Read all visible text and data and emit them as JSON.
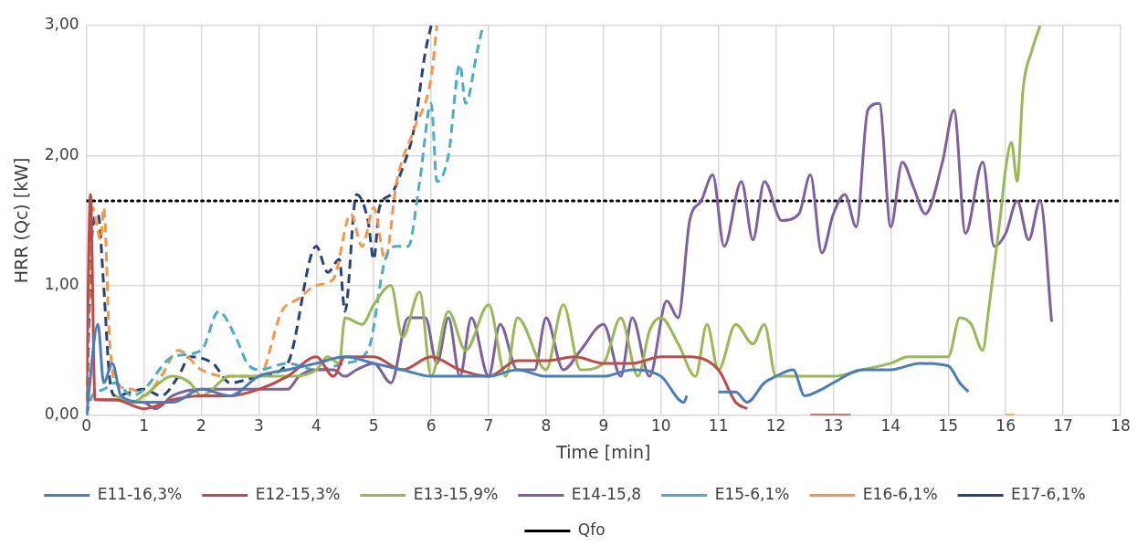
{
  "chart_data": {
    "type": "line",
    "xlabel": "Time [min]",
    "ylabel": "HRR (Qc) [kW]",
    "xlim": [
      0,
      18
    ],
    "xticks": [
      0,
      1,
      2,
      3,
      4,
      5,
      6,
      7,
      8,
      9,
      10,
      11,
      12,
      13,
      14,
      15,
      16,
      17,
      18
    ],
    "ylim": [
      0,
      3
    ],
    "yticks": [
      {
        "value": 0,
        "label": "0,00"
      },
      {
        "value": 1,
        "label": "1,00"
      },
      {
        "value": 2,
        "label": "2,00"
      },
      {
        "value": 3,
        "label": "3,00"
      }
    ],
    "grid": true,
    "legend": "bottom",
    "marker": "none",
    "series": [
      {
        "name": "E11-16,3%",
        "color": "#4a7ebb",
        "line_style": "solid",
        "x": [
          0,
          0.2,
          0.3,
          0.45,
          0.6,
          1,
          1.5,
          2,
          2.5,
          3,
          3.5,
          4,
          4.5,
          5,
          5.5,
          6,
          7,
          7.5,
          8,
          9,
          9.5,
          10,
          10.4,
          10.45,
          10.7,
          11,
          11.3,
          11.5,
          11.8,
          12,
          12.3,
          12.5,
          12.8,
          13,
          13.5,
          14,
          14.5,
          15,
          15.2,
          15.35
        ],
        "values": [
          0,
          0.7,
          0.25,
          0.4,
          0.15,
          0.1,
          0.1,
          0.2,
          0.15,
          0.3,
          0.35,
          0.4,
          0.45,
          0.4,
          0.35,
          0.3,
          0.3,
          0.35,
          0.3,
          0.3,
          0.35,
          0.3,
          0.1,
          0.15,
          null,
          0.18,
          0.18,
          0.1,
          0.25,
          0.3,
          0.35,
          0.15,
          0.2,
          0.25,
          0.35,
          0.35,
          0.4,
          0.38,
          0.25,
          0.18
        ]
      },
      {
        "name": "E12-15,3%",
        "color": "#be4b48",
        "line_style": "solid",
        "x": [
          0,
          0.07,
          0.15,
          0.5,
          1,
          1.5,
          2,
          2.5,
          3,
          3.5,
          4,
          4.3,
          4.5,
          5,
          5.5,
          6,
          6.5,
          7,
          7.5,
          8,
          8.5,
          9,
          9.5,
          10,
          10.5,
          11,
          11.3,
          11.5,
          12,
          12.6,
          13.3
        ],
        "values": [
          0.1,
          1.7,
          0.12,
          0.12,
          0.05,
          0.12,
          0.15,
          0.15,
          0.2,
          0.3,
          0.45,
          0.3,
          0.45,
          0.45,
          0.35,
          0.45,
          0.35,
          0.3,
          0.42,
          0.42,
          0.45,
          0.4,
          0.4,
          0.45,
          0.45,
          0.35,
          0.1,
          0.05,
          null,
          0,
          0
        ]
      },
      {
        "name": "E13-15,9%",
        "color": "#98b954",
        "line_style": "solid",
        "x": [
          0.5,
          0.8,
          1,
          1.5,
          1.8,
          2,
          2.5,
          3,
          3.5,
          4,
          4.2,
          4.4,
          4.5,
          4.8,
          5,
          5.3,
          5.5,
          5.8,
          6,
          6.3,
          6.6,
          7,
          7.3,
          7.5,
          8,
          8.3,
          8.6,
          9,
          9.3,
          9.6,
          9.8,
          10,
          10.3,
          10.6,
          10.8,
          11,
          11.3,
          11.6,
          11.8,
          12,
          12.5,
          12.8,
          13,
          13.5,
          14,
          14.3,
          14.5,
          15,
          15.2,
          15.4,
          15.6,
          15.7,
          15.9,
          16,
          16.1,
          16.2,
          16.3,
          16.45,
          16.6
        ],
        "values": [
          0.15,
          0.1,
          0.15,
          0.3,
          0.25,
          0.15,
          0.3,
          0.3,
          0.3,
          0.35,
          0.45,
          0.4,
          0.75,
          0.7,
          0.85,
          1,
          0.6,
          0.95,
          0.3,
          0.8,
          0.5,
          0.85,
          0.3,
          0.75,
          0.35,
          0.85,
          0.35,
          0.4,
          0.75,
          0.3,
          0.65,
          0.75,
          0.55,
          0.3,
          0.7,
          0.35,
          0.7,
          0.55,
          0.7,
          0.3,
          0.3,
          0.3,
          0.3,
          0.35,
          0.4,
          0.45,
          0.45,
          0.45,
          0.75,
          0.7,
          0.5,
          0.8,
          1.5,
          1.9,
          2.1,
          1.8,
          2.5,
          2.8,
          3
        ]
      },
      {
        "name": "E14-15,8",
        "color": "#7d60a0",
        "line_style": "solid",
        "x": [
          0.2,
          1,
          1.2,
          1.5,
          2,
          2.5,
          3,
          3.5,
          3.7,
          4,
          4.3,
          4.5,
          4.7,
          5,
          5.3,
          5.6,
          5.9,
          6.1,
          6.3,
          6.5,
          6.7,
          7,
          7.2,
          7.5,
          7.8,
          8,
          8.3,
          8.6,
          9,
          9.3,
          9.5,
          9.8,
          10.1,
          10.3,
          10.5,
          10.7,
          10.9,
          11.1,
          11.4,
          11.6,
          11.8,
          12.1,
          12.4,
          12.6,
          12.8,
          13,
          13.2,
          13.4,
          13.6,
          13.8,
          14,
          14.2,
          14.4,
          14.6,
          14.9,
          15.1,
          15.3,
          15.6,
          15.8,
          16,
          16.2,
          16.4,
          16.6,
          16.8
        ],
        "values": [
          0.12,
          0.1,
          0.05,
          0.15,
          0.2,
          0.2,
          0.2,
          0.2,
          0.3,
          0.35,
          0.35,
          0.3,
          0.35,
          0.4,
          0.25,
          0.75,
          0.75,
          0.4,
          0.75,
          0.3,
          0.75,
          0.3,
          0.7,
          0.35,
          0.35,
          0.75,
          0.35,
          0.5,
          0.7,
          0.3,
          0.75,
          0.3,
          0.88,
          0.75,
          1.5,
          1.65,
          1.85,
          1.3,
          1.8,
          1.35,
          1.8,
          1.5,
          1.55,
          1.85,
          1.25,
          1.55,
          1.7,
          1.45,
          2.35,
          2.4,
          1.45,
          1.95,
          1.75,
          1.55,
          1.95,
          2.35,
          1.4,
          1.95,
          1.3,
          1.4,
          1.65,
          1.35,
          1.65,
          0.72
        ]
      },
      {
        "name": "E15-6,1%",
        "color": "#4bacc6",
        "line_style": "dashed",
        "x": [
          0,
          0.1,
          0.3,
          0.5,
          0.8,
          1,
          1.5,
          2,
          2.3,
          2.6,
          2.8,
          3,
          3.5,
          4,
          4.5,
          4.9,
          5.2,
          5.4,
          5.6,
          5.8,
          6,
          6.1,
          6.3,
          6.5,
          6.6,
          6.8,
          6.9
        ],
        "values": [
          0,
          0.15,
          0.2,
          0.25,
          0.15,
          0.2,
          0.45,
          0.5,
          0.8,
          0.6,
          0.4,
          0.35,
          0.4,
          0.35,
          0.4,
          0.5,
          1.2,
          1.3,
          1.3,
          1.8,
          2.4,
          1.8,
          2,
          2.7,
          2.4,
          2.8,
          3
        ]
      },
      {
        "name": "E16-6,1%",
        "color": "#f79646",
        "line_style": "dashed",
        "x": [
          0,
          0.1,
          0.25,
          0.3,
          0.4,
          0.5,
          0.8,
          1,
          1.3,
          1.6,
          2,
          2.5,
          3,
          3.4,
          3.7,
          4,
          4.3,
          4.6,
          4.8,
          5,
          5.2,
          5.4,
          5.7,
          6,
          6.1,
          10,
          16,
          16.15
        ],
        "values": [
          0.1,
          1.6,
          1.35,
          1.6,
          0.6,
          0.25,
          0.2,
          0.15,
          0.3,
          0.5,
          0.35,
          0.3,
          0.3,
          0.8,
          0.9,
          1,
          1.05,
          1.55,
          1.3,
          1.6,
          1.2,
          1.8,
          2.2,
          2.6,
          3,
          null,
          0,
          0
        ]
      },
      {
        "name": "E17-6,1%",
        "color": "#264478",
        "line_style": "dashed",
        "x": [
          0,
          0.1,
          0.2,
          0.3,
          0.4,
          0.5,
          1,
          1.3,
          1.6,
          1.8,
          2.2,
          2.5,
          3,
          3.5,
          4,
          4.2,
          4.4,
          4.5,
          4.7,
          4.9,
          5,
          5.1,
          5.3,
          5.5,
          5.7,
          5.9,
          6
        ],
        "values": [
          0,
          1.4,
          1.55,
          1,
          0.3,
          0.15,
          0.2,
          0.15,
          0.3,
          0.45,
          0.4,
          0.25,
          0.3,
          0.4,
          1.3,
          1.1,
          1.2,
          0.8,
          1.7,
          1.5,
          1.2,
          1.6,
          1.7,
          1.9,
          2.2,
          2.8,
          3
        ]
      },
      {
        "name": "Qfo",
        "color": "#000000",
        "line_style": "dotted",
        "x": [
          0,
          18
        ],
        "values": [
          1.65,
          1.65
        ]
      }
    ]
  }
}
